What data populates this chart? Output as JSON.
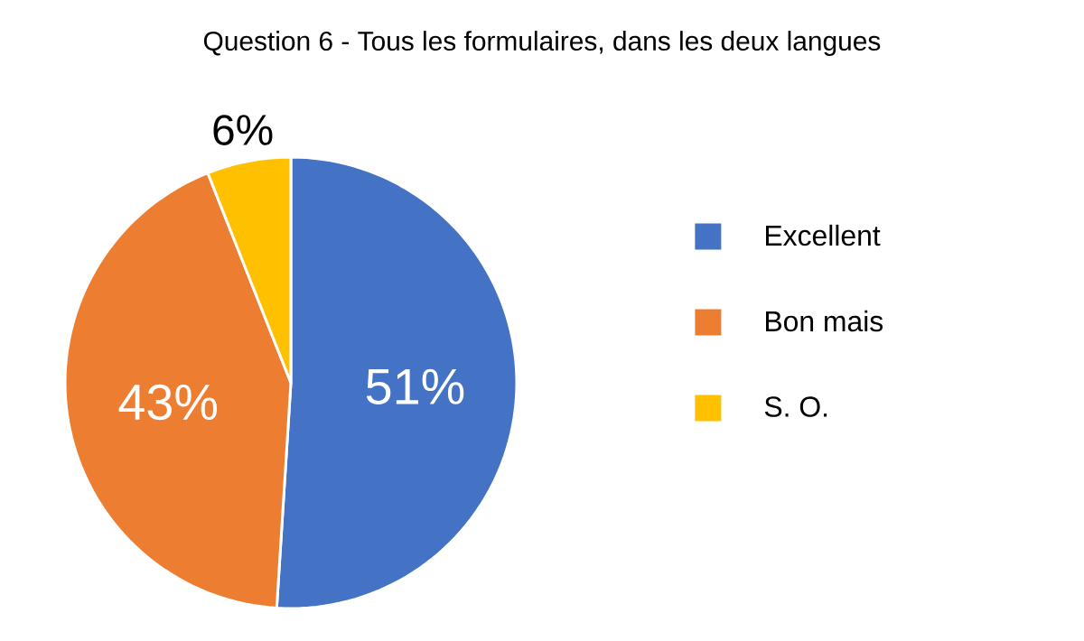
{
  "chart_data": {
    "type": "pie",
    "title": "Question 6 - Tous les formulaires, dans les deux langues",
    "categories": [
      "Excellent",
      "Bon mais",
      "S. O."
    ],
    "values": [
      51,
      43,
      6
    ],
    "colors": [
      "#4472c4",
      "#ed7d31",
      "#ffc000"
    ],
    "data_labels": true,
    "value_labels": [
      "51%",
      "43%",
      "6%"
    ],
    "legend": "right"
  }
}
